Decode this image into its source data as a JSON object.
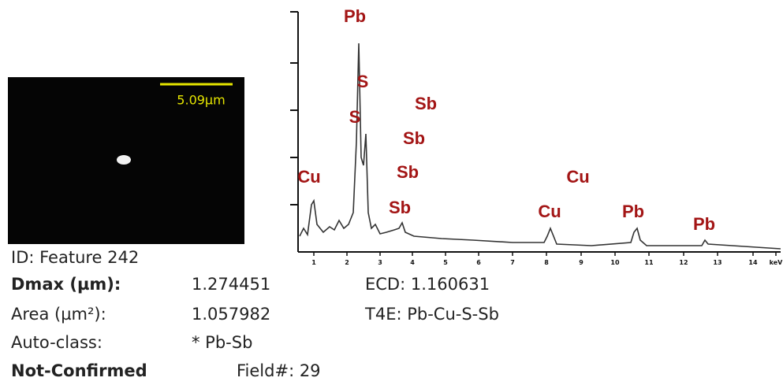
{
  "image_panel": {
    "scale_label": "5.09µm"
  },
  "spectrum": {
    "peak_labels": [
      {
        "text": "Pb"
      },
      {
        "text": "S"
      },
      {
        "text": "S"
      },
      {
        "text": "Sb"
      },
      {
        "text": "Sb"
      },
      {
        "text": "Sb"
      },
      {
        "text": "Cu"
      },
      {
        "text": "Sb"
      },
      {
        "text": "Cu"
      },
      {
        "text": "Cu"
      },
      {
        "text": "Pb"
      },
      {
        "text": "Pb"
      }
    ],
    "x_tick_labels": [
      "1",
      "2",
      "3",
      "4",
      "5",
      "6",
      "7",
      "8",
      "9",
      "10",
      "11",
      "12",
      "13",
      "14",
      "keV"
    ]
  },
  "info": {
    "id": "ID: Feature 242",
    "dmax_label": "Dmax (µm):",
    "dmax_value": "1.274451",
    "ecd": "ECD: 1.160631",
    "area_label": "Area (µm²):",
    "area_value": "1.057982",
    "t4e": "T4E:  Pb-Cu-S-Sb",
    "autoclass_label": "Auto-class:",
    "autoclass_value": "* Pb-Sb",
    "status": "Not-Confirmed",
    "field": "Field#:  29"
  }
}
